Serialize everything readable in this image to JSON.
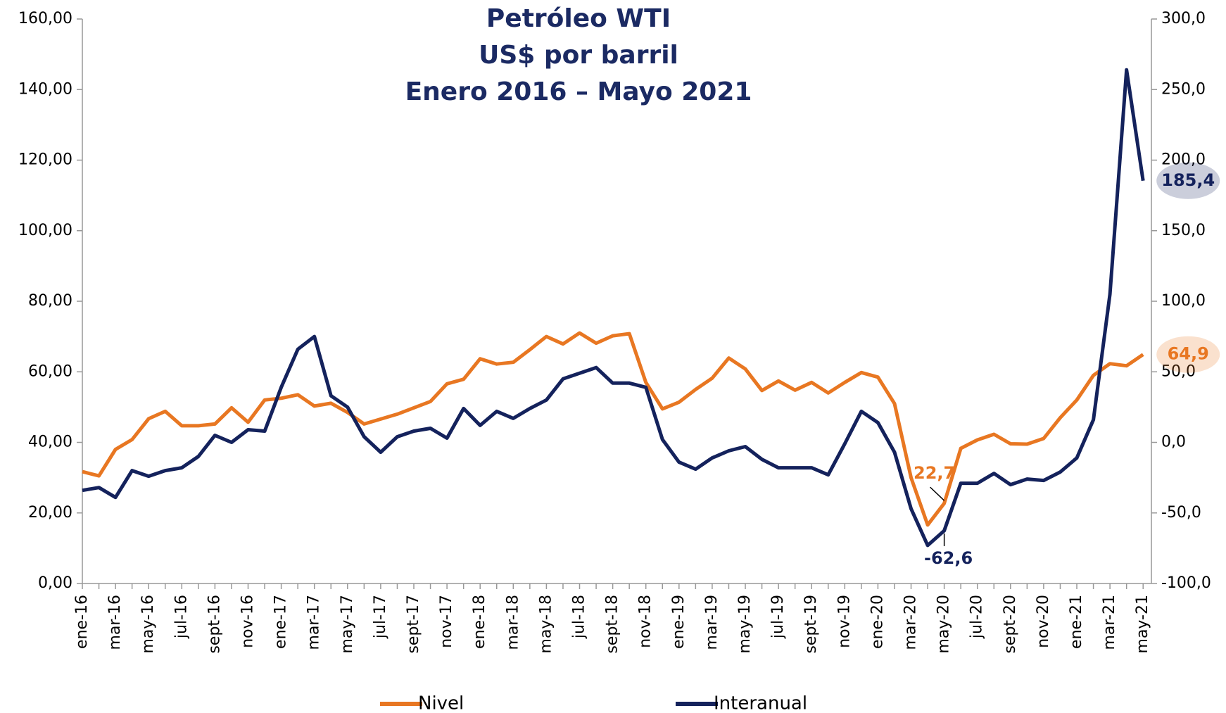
{
  "chart_data": {
    "type": "line",
    "title": [
      "Petróleo WTI",
      "US$ por barril",
      "Enero 2016 – Mayo 2021"
    ],
    "categories": [
      "ene-16",
      null,
      "mar-16",
      null,
      "may-16",
      null,
      "jul-16",
      null,
      "sept-16",
      null,
      "nov-16",
      null,
      "ene-17",
      null,
      "mar-17",
      null,
      "may-17",
      null,
      "jul-17",
      null,
      "sept-17",
      null,
      "nov-17",
      null,
      "ene-18",
      null,
      "mar-18",
      null,
      "may-18",
      null,
      "jul-18",
      null,
      "sept-18",
      null,
      "nov-18",
      null,
      "ene-19",
      null,
      "mar-19",
      null,
      "may-19",
      null,
      "jul-19",
      null,
      "sept-19",
      null,
      "nov-19",
      null,
      "ene-20",
      null,
      "mar-20",
      null,
      "may-20",
      null,
      "jul-20",
      null,
      "sept-20",
      null,
      "nov-20",
      null,
      "ene-21",
      null,
      "mar-21",
      null,
      "may-21"
    ],
    "series": [
      {
        "name": "Nivel",
        "color": "#e87722",
        "axis": "y",
        "values": [
          31.7,
          30.5,
          38.0,
          40.8,
          46.7,
          48.8,
          44.7,
          44.7,
          45.2,
          49.8,
          45.7,
          52.0,
          52.5,
          53.5,
          50.3,
          51.1,
          48.5,
          45.2,
          46.6,
          48.0,
          49.8,
          51.6,
          56.6,
          57.9,
          63.7,
          62.2,
          62.7,
          66.3,
          70.0,
          67.9,
          71.0,
          68.1,
          70.2,
          70.8,
          57.0,
          49.5,
          51.4,
          55.0,
          58.2,
          63.9,
          60.8,
          54.7,
          57.4,
          54.8,
          57.0,
          54.0,
          57.0,
          59.8,
          58.5,
          51.0,
          30.0,
          16.6,
          22.7,
          38.3,
          40.7,
          42.3,
          39.6,
          39.5,
          41.1,
          47.0,
          52.0,
          59.0,
          62.3,
          61.7,
          64.9
        ],
        "value_labels": [
          null,
          null,
          null,
          null,
          null,
          null,
          null,
          null,
          null,
          null,
          null,
          null,
          null,
          null,
          null,
          null,
          null,
          null,
          null,
          null,
          null,
          null,
          null,
          null,
          null,
          null,
          null,
          null,
          null,
          null,
          null,
          null,
          null,
          null,
          null,
          null,
          null,
          null,
          null,
          null,
          null,
          null,
          null,
          null,
          null,
          null,
          null,
          null,
          null,
          null,
          null,
          null,
          "22,7",
          null,
          null,
          null,
          null,
          null,
          null,
          null,
          null,
          null,
          null,
          null,
          "64,9"
        ]
      },
      {
        "name": "Interanual",
        "color": "#14225c",
        "axis": "y2",
        "values": [
          -34,
          -32,
          -39,
          -20,
          -24,
          -20,
          -18,
          -10,
          5,
          0,
          9,
          8,
          39,
          66,
          75,
          33,
          25,
          4,
          -7,
          4,
          8,
          10,
          3,
          24,
          12,
          22,
          17,
          24,
          30,
          45,
          49,
          53,
          42,
          42,
          39,
          2,
          -14,
          -19,
          -11,
          -6,
          -3,
          -12,
          -18,
          -18,
          -18,
          -23,
          -1,
          22,
          14,
          -7,
          -47,
          -73,
          -62.6,
          -29,
          -29,
          -22,
          -30,
          -26,
          -27,
          -21,
          -11,
          16,
          105,
          264,
          185.4
        ],
        "value_labels": [
          null,
          null,
          null,
          null,
          null,
          null,
          null,
          null,
          null,
          null,
          null,
          null,
          null,
          null,
          null,
          null,
          null,
          null,
          null,
          null,
          null,
          null,
          null,
          null,
          null,
          null,
          null,
          null,
          null,
          null,
          null,
          null,
          null,
          null,
          null,
          null,
          null,
          null,
          null,
          null,
          null,
          null,
          null,
          null,
          null,
          null,
          null,
          null,
          null,
          null,
          null,
          null,
          "-62,6",
          null,
          null,
          null,
          null,
          null,
          null,
          null,
          null,
          null,
          null,
          null,
          "185,4"
        ]
      }
    ],
    "ylim": [
      0,
      160
    ],
    "yticks": [
      {
        "value": 0,
        "label": "0,00"
      },
      {
        "value": 20,
        "label": "20,00"
      },
      {
        "value": 40,
        "label": "40,00"
      },
      {
        "value": 60,
        "label": "60,00"
      },
      {
        "value": 80,
        "label": "80,00"
      },
      {
        "value": 100,
        "label": "100,00"
      },
      {
        "value": 120,
        "label": "120,00"
      },
      {
        "value": 140,
        "label": "140,00"
      },
      {
        "value": 160,
        "label": "160,00"
      }
    ],
    "y2lim": [
      -100,
      300
    ],
    "y2ticks": [
      {
        "value": -100,
        "label": "-100,0"
      },
      {
        "value": -50,
        "label": "-50,0"
      },
      {
        "value": 0,
        "label": "0,0"
      },
      {
        "value": 50,
        "label": "50,0"
      },
      {
        "value": 100,
        "label": "100,0"
      },
      {
        "value": 150,
        "label": "150,0"
      },
      {
        "value": 200,
        "label": "200,0"
      },
      {
        "value": 250,
        "label": "250,0"
      },
      {
        "value": 300,
        "label": "300,0"
      }
    ],
    "legend": "bottom"
  }
}
